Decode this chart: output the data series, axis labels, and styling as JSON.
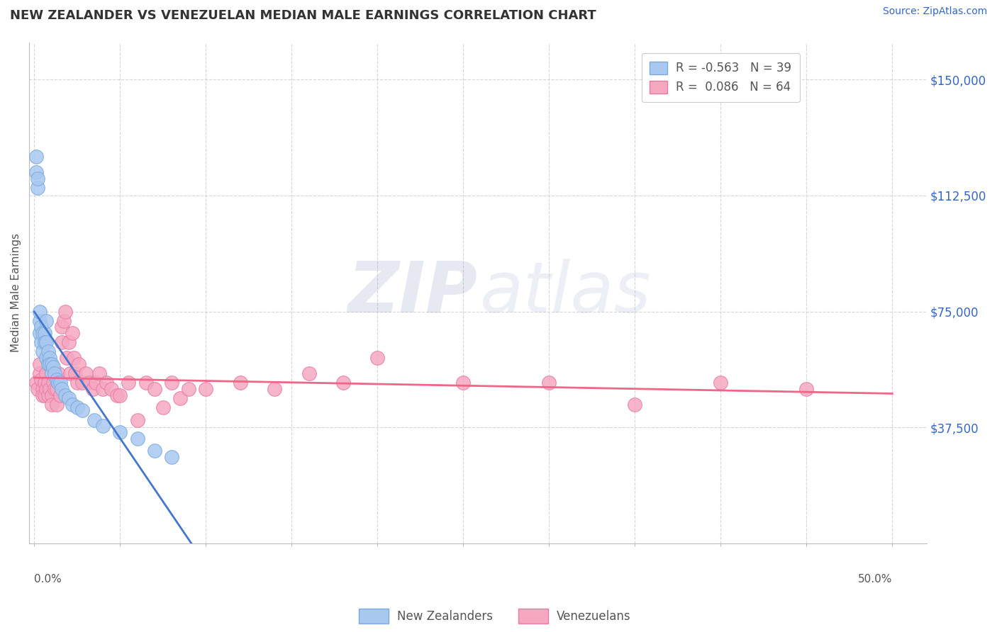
{
  "title": "NEW ZEALANDER VS VENEZUELAN MEDIAN MALE EARNINGS CORRELATION CHART",
  "source": "Source: ZipAtlas.com",
  "ylabel": "Median Male Earnings",
  "ytick_labels": [
    "$37,500",
    "$75,000",
    "$112,500",
    "$150,000"
  ],
  "ytick_values": [
    37500,
    75000,
    112500,
    150000
  ],
  "ylim": [
    0,
    162000
  ],
  "xlim": [
    -0.003,
    0.52
  ],
  "legend_nz": "R = -0.563   N = 39",
  "legend_ve": "R =  0.086   N = 64",
  "legend_label_nz": "New Zealanders",
  "legend_label_ve": "Venezuelans",
  "dot_color_nz": "#a8c8f0",
  "dot_color_ve": "#f5a8c0",
  "dot_edge_nz": "#7aaadd",
  "dot_edge_ve": "#e87aaa",
  "line_color_nz": "#4477cc",
  "line_color_ve": "#ee6688",
  "nz_r": -0.563,
  "nz_n": 39,
  "ve_r": 0.086,
  "ve_n": 64,
  "nz_x": [
    0.001,
    0.001,
    0.002,
    0.002,
    0.003,
    0.003,
    0.003,
    0.004,
    0.004,
    0.005,
    0.005,
    0.006,
    0.006,
    0.007,
    0.007,
    0.007,
    0.008,
    0.008,
    0.009,
    0.009,
    0.01,
    0.01,
    0.011,
    0.012,
    0.013,
    0.014,
    0.015,
    0.016,
    0.018,
    0.02,
    0.022,
    0.025,
    0.028,
    0.035,
    0.04,
    0.05,
    0.06,
    0.07,
    0.08
  ],
  "nz_y": [
    120000,
    125000,
    115000,
    118000,
    72000,
    68000,
    75000,
    70000,
    65000,
    68000,
    62000,
    68000,
    65000,
    65000,
    60000,
    72000,
    58000,
    62000,
    60000,
    58000,
    58000,
    55000,
    57000,
    55000,
    53000,
    52000,
    52000,
    50000,
    48000,
    47000,
    45000,
    44000,
    43000,
    40000,
    38000,
    36000,
    34000,
    30000,
    28000
  ],
  "ve_x": [
    0.001,
    0.002,
    0.003,
    0.003,
    0.004,
    0.005,
    0.005,
    0.006,
    0.006,
    0.007,
    0.007,
    0.008,
    0.008,
    0.009,
    0.01,
    0.01,
    0.011,
    0.012,
    0.013,
    0.013,
    0.014,
    0.015,
    0.016,
    0.016,
    0.017,
    0.018,
    0.019,
    0.02,
    0.021,
    0.022,
    0.023,
    0.024,
    0.025,
    0.026,
    0.028,
    0.03,
    0.032,
    0.034,
    0.036,
    0.038,
    0.04,
    0.042,
    0.045,
    0.048,
    0.05,
    0.055,
    0.06,
    0.065,
    0.07,
    0.075,
    0.08,
    0.085,
    0.09,
    0.1,
    0.12,
    0.14,
    0.16,
    0.18,
    0.2,
    0.25,
    0.3,
    0.35,
    0.4,
    0.45
  ],
  "ve_y": [
    52000,
    50000,
    55000,
    58000,
    53000,
    50000,
    48000,
    52000,
    48000,
    55000,
    50000,
    52000,
    48000,
    50000,
    48000,
    45000,
    52000,
    50000,
    50000,
    45000,
    55000,
    48000,
    70000,
    65000,
    72000,
    75000,
    60000,
    65000,
    55000,
    68000,
    60000,
    55000,
    52000,
    58000,
    52000,
    55000,
    52000,
    50000,
    52000,
    55000,
    50000,
    52000,
    50000,
    48000,
    48000,
    52000,
    40000,
    52000,
    50000,
    44000,
    52000,
    47000,
    50000,
    50000,
    52000,
    50000,
    55000,
    52000,
    60000,
    52000,
    52000,
    45000,
    52000,
    50000
  ]
}
